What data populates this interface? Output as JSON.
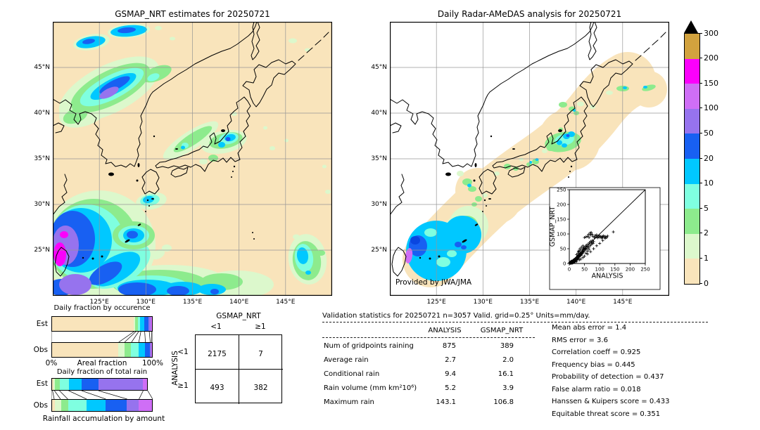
{
  "figure": {
    "background": "#ffffff",
    "accent_black": "#000000",
    "grid_color": "#969696"
  },
  "chart_data": [
    {
      "name": "gsmap-map",
      "type": "heatmap",
      "title": "GSMAP_NRT estimates for 20250721",
      "x_ticks": [
        "125°E",
        "130°E",
        "135°E",
        "140°E",
        "145°E"
      ],
      "y_ticks": [
        "45°N",
        "40°N",
        "35°N",
        "30°N",
        "25°N"
      ],
      "lon_range": [
        120,
        150
      ],
      "lat_range": [
        20,
        50
      ],
      "units": "mm/day"
    },
    {
      "name": "radar-map",
      "type": "heatmap",
      "title": "Daily Radar-AMeDAS analysis for 20250721",
      "x_ticks": [
        "125°E",
        "130°E",
        "135°E",
        "140°E",
        "145°E"
      ],
      "y_ticks": [
        "45°N",
        "40°N",
        "35°N",
        "30°N",
        "25°N"
      ],
      "lon_range": [
        120,
        150
      ],
      "lat_range": [
        20,
        50
      ],
      "credit": "Provided by JWA/JMA",
      "units": "mm/day"
    },
    {
      "name": "colorbar",
      "type": "colorbar",
      "tick_labels_top_to_bottom": [
        "300",
        "200",
        "150",
        "100",
        "50",
        "20",
        "10",
        "5",
        "2",
        "1",
        "0"
      ],
      "colors_bottom_to_top": [
        "#F9E4BB",
        "#DCF8CC",
        "#8DEB8D",
        "#7FFFE0",
        "#00C8FF",
        "#1860F2",
        "#9673EE",
        "#CF6EF6",
        "#FB00FB",
        "#D2A23E"
      ],
      "overflow_color": "#000000"
    },
    {
      "name": "scatter-inset",
      "type": "scatter",
      "xlabel": "ANALYSIS",
      "ylabel": "GSMAP_NRT",
      "xlim": [
        0,
        250
      ],
      "ylim": [
        0,
        250
      ],
      "x_ticks": [
        0,
        50,
        100,
        150,
        200,
        250
      ],
      "y_ticks": [
        0,
        50,
        100,
        150,
        200,
        250
      ],
      "identity_line": true,
      "points": [
        [
          1,
          2
        ],
        [
          2,
          1
        ],
        [
          2,
          3
        ],
        [
          3,
          1
        ],
        [
          3,
          4
        ],
        [
          4,
          2
        ],
        [
          4,
          5
        ],
        [
          5,
          3
        ],
        [
          5,
          1
        ],
        [
          6,
          4
        ],
        [
          6,
          7
        ],
        [
          7,
          2
        ],
        [
          7,
          5
        ],
        [
          8,
          3
        ],
        [
          8,
          8
        ],
        [
          9,
          5
        ],
        [
          9,
          1
        ],
        [
          10,
          4
        ],
        [
          10,
          8
        ],
        [
          11,
          6
        ],
        [
          11,
          2
        ],
        [
          12,
          9
        ],
        [
          12,
          5
        ],
        [
          13,
          3
        ],
        [
          13,
          11
        ],
        [
          14,
          7
        ],
        [
          15,
          4
        ],
        [
          15,
          12
        ],
        [
          16,
          8
        ],
        [
          17,
          5
        ],
        [
          17,
          14
        ],
        [
          18,
          10
        ],
        [
          19,
          6
        ],
        [
          20,
          15
        ],
        [
          21,
          9
        ],
        [
          22,
          18
        ],
        [
          23,
          12
        ],
        [
          24,
          7
        ],
        [
          25,
          20
        ],
        [
          26,
          14
        ],
        [
          27,
          22
        ],
        [
          28,
          16
        ],
        [
          29,
          25
        ],
        [
          30,
          19
        ],
        [
          31,
          28
        ],
        [
          32,
          22
        ],
        [
          33,
          30
        ],
        [
          34,
          25
        ],
        [
          35,
          33
        ],
        [
          36,
          27
        ],
        [
          37,
          35
        ],
        [
          38,
          30
        ],
        [
          39,
          28
        ],
        [
          40,
          38
        ],
        [
          41,
          32
        ],
        [
          42,
          45
        ],
        [
          43,
          35
        ],
        [
          44,
          40
        ],
        [
          45,
          48
        ],
        [
          46,
          38
        ],
        [
          47,
          52
        ],
        [
          48,
          42
        ],
        [
          49,
          55
        ],
        [
          50,
          45
        ],
        [
          52,
          50
        ],
        [
          54,
          58
        ],
        [
          55,
          48
        ],
        [
          56,
          62
        ],
        [
          58,
          52
        ],
        [
          60,
          58
        ],
        [
          62,
          66
        ],
        [
          64,
          55
        ],
        [
          66,
          70
        ],
        [
          68,
          60
        ],
        [
          70,
          75
        ],
        [
          72,
          64
        ],
        [
          74,
          70
        ],
        [
          76,
          78
        ],
        [
          78,
          68
        ],
        [
          80,
          74
        ],
        [
          50,
          88
        ],
        [
          55,
          90
        ],
        [
          60,
          92
        ],
        [
          63,
          98
        ],
        [
          65,
          88
        ],
        [
          68,
          103
        ],
        [
          70,
          96
        ],
        [
          72,
          105
        ],
        [
          75,
          99
        ],
        [
          78,
          92
        ],
        [
          82,
          88
        ],
        [
          85,
          95
        ],
        [
          88,
          90
        ],
        [
          90,
          97
        ],
        [
          93,
          87
        ],
        [
          95,
          93
        ],
        [
          98,
          89
        ],
        [
          100,
          94
        ],
        [
          103,
          90
        ],
        [
          106,
          86
        ],
        [
          108,
          92
        ],
        [
          110,
          88
        ],
        [
          113,
          94
        ],
        [
          116,
          90
        ],
        [
          118,
          85
        ],
        [
          120,
          91
        ],
        [
          123,
          88
        ],
        [
          126,
          93
        ],
        [
          145,
          107
        ],
        [
          36,
          45
        ],
        [
          32,
          40
        ],
        [
          28,
          35
        ],
        [
          24,
          30
        ],
        [
          45,
          60
        ],
        [
          40,
          55
        ],
        [
          35,
          50
        ],
        [
          30,
          42
        ],
        [
          55,
          35
        ],
        [
          60,
          42
        ],
        [
          65,
          48
        ],
        [
          50,
          25
        ],
        [
          60,
          32
        ],
        [
          70,
          40
        ],
        [
          80,
          50
        ],
        [
          90,
          60
        ],
        [
          100,
          68
        ],
        [
          110,
          78
        ],
        [
          45,
          20
        ],
        [
          38,
          15
        ],
        [
          33,
          12
        ]
      ]
    },
    {
      "name": "occurrence-fractions",
      "type": "bar",
      "subtype": "stacked-horizontal",
      "title": "Daily fraction by occurence",
      "rows": [
        "Est",
        "Obs"
      ],
      "axis_left": "0%",
      "axis_label": "Areal fraction",
      "axis_right": "100%",
      "colors": [
        "#F9E4BB",
        "#DCF8CC",
        "#8DEB8D",
        "#7FFFE0",
        "#00C8FF",
        "#1860F2",
        "#9673EE",
        "#CF6EF6"
      ],
      "est": [
        0.815,
        0.018,
        0.028,
        0.022,
        0.038,
        0.045,
        0.022,
        0.012
      ],
      "obs": [
        0.665,
        0.058,
        0.068,
        0.072,
        0.065,
        0.048,
        0.014,
        0.01
      ],
      "est_scale": 1,
      "obs_scale": 1
    },
    {
      "name": "totalrain-fractions",
      "type": "bar",
      "subtype": "stacked-horizontal",
      "title": "Daily fraction of total rain",
      "caption": "Rainfall accumulation by amount",
      "rows": [
        "Est",
        "Obs"
      ],
      "colors": [
        "#F9E4BB",
        "#DCF8CC",
        "#8DEB8D",
        "#7FFFE0",
        "#00C8FF",
        "#1860F2",
        "#9673EE",
        "#CF6EF6"
      ],
      "est": [
        0.012,
        0.02,
        0.052,
        0.095,
        0.135,
        0.175,
        0.465,
        0.046
      ],
      "obs": [
        0.028,
        0.062,
        0.072,
        0.185,
        0.19,
        0.21,
        0.118,
        0.135
      ],
      "est_scale": 0.95,
      "obs_scale": 1
    },
    {
      "name": "contingency-table",
      "type": "table",
      "col_title": "GSMAP_NRT",
      "row_title": "ANALYSIS",
      "col_labels": [
        "<1",
        "≥1"
      ],
      "row_labels": [
        "<1",
        "≥1"
      ],
      "values": [
        [
          "2175",
          "7"
        ],
        [
          "493",
          "382"
        ]
      ]
    },
    {
      "name": "validation-stats",
      "type": "table",
      "title": "Validation statistics for 20250721  n=3057 Valid. grid=0.25° Units=mm/day.",
      "columns": [
        "ANALYSIS",
        "GSMAP_NRT"
      ],
      "rows": [
        [
          "Num of gridpoints raining",
          "875",
          "389"
        ],
        [
          "Average rain",
          "2.7",
          "2.0"
        ],
        [
          "Conditional rain",
          "9.4",
          "16.1"
        ],
        [
          "Rain volume (mm km²10⁶)",
          "5.2",
          "3.9"
        ],
        [
          "Maximum rain",
          "143.1",
          "106.8"
        ]
      ],
      "scores": [
        [
          "Mean abs error",
          "1.4"
        ],
        [
          "RMS error",
          "3.6"
        ],
        [
          "Correlation coeff",
          "0.925"
        ],
        [
          "Frequency bias",
          "0.445"
        ],
        [
          "Probability of detection",
          "0.437"
        ],
        [
          "False alarm ratio",
          "0.018"
        ],
        [
          "Hanssen & Kuipers score",
          "0.433"
        ],
        [
          "Equitable threat score",
          "0.351"
        ]
      ]
    }
  ]
}
